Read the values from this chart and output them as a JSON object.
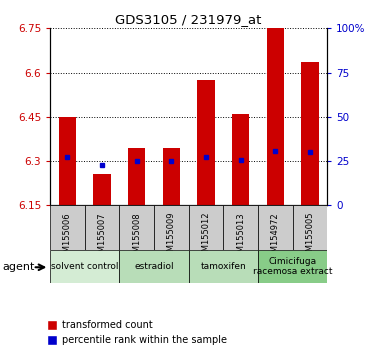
{
  "title": "GDS3105 / 231979_at",
  "samples": [
    "GSM155006",
    "GSM155007",
    "GSM155008",
    "GSM155009",
    "GSM155012",
    "GSM155013",
    "GSM154972",
    "GSM155005"
  ],
  "bar_values": [
    6.45,
    6.255,
    6.345,
    6.345,
    6.575,
    6.46,
    6.75,
    6.635
  ],
  "bar_bottom": 6.15,
  "blue_values": [
    6.315,
    6.285,
    6.3,
    6.3,
    6.315,
    6.305,
    6.335,
    6.33
  ],
  "bar_color": "#cc0000",
  "blue_color": "#0000cc",
  "ylim_left": [
    6.15,
    6.75
  ],
  "ylim_right": [
    0,
    100
  ],
  "yticks_left": [
    6.15,
    6.3,
    6.45,
    6.6,
    6.75
  ],
  "ytick_labels_left": [
    "6.15",
    "6.3",
    "6.45",
    "6.6",
    "6.75"
  ],
  "yticks_right": [
    0,
    25,
    50,
    75,
    100
  ],
  "ytick_labels_right": [
    "0",
    "25",
    "50",
    "75",
    "100%"
  ],
  "groups": [
    {
      "label": "solvent control",
      "start": 0,
      "end": 1,
      "color": "#d4ecd4"
    },
    {
      "label": "estradiol",
      "start": 2,
      "end": 3,
      "color": "#b8ddb8"
    },
    {
      "label": "tamoxifen",
      "start": 4,
      "end": 5,
      "color": "#b8ddb8"
    },
    {
      "label": "Cimicifuga\nracemosa extract",
      "start": 6,
      "end": 7,
      "color": "#88cc88"
    }
  ],
  "legend_red": "transformed count",
  "legend_blue": "percentile rank within the sample",
  "bar_width": 0.5,
  "background_color": "#ffffff",
  "xlabel_color": "#cc0000",
  "ylabel_right_color": "#0000cc",
  "sample_box_color": "#cccccc"
}
